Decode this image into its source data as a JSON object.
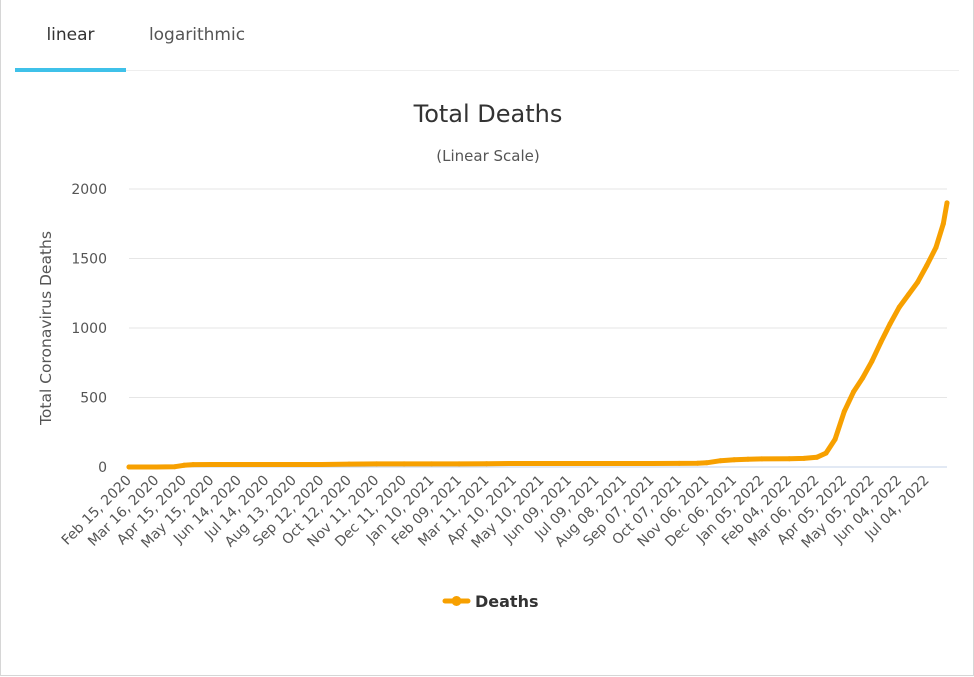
{
  "tabs": [
    {
      "label": "linear",
      "active": true
    },
    {
      "label": "logarithmic",
      "active": false
    }
  ],
  "colors": {
    "series": "#f7a000",
    "tab_underline": "#3fc1e9",
    "grid": "#e6e6e6",
    "x_axis_line": "#c5d3e8"
  },
  "chart_data": {
    "type": "line",
    "title": "Total Deaths",
    "subtitle": "(Linear Scale)",
    "ylabel": "Total Coronavirus Deaths",
    "xlabel": "",
    "ylim": [
      0,
      2000
    ],
    "yticks": [
      0,
      500,
      1000,
      1500,
      2000
    ],
    "x_tick_labels": [
      "Feb 15, 2020",
      "Mar 16, 2020",
      "Apr 15, 2020",
      "May 15, 2020",
      "Jun 14, 2020",
      "Jul 14, 2020",
      "Aug 13, 2020",
      "Sep 12, 2020",
      "Oct 12, 2020",
      "Nov 11, 2020",
      "Dec 11, 2020",
      "Jan 10, 2021",
      "Feb 09, 2021",
      "Mar 11, 2021",
      "Apr 10, 2021",
      "May 10, 2021",
      "Jun 09, 2021",
      "Jul 09, 2021",
      "Aug 08, 2021",
      "Sep 07, 2021",
      "Oct 07, 2021",
      "Nov 06, 2021",
      "Dec 06, 2021",
      "Jan 05, 2022",
      "Feb 04, 2022",
      "Mar 06, 2022",
      "Apr 05, 2022",
      "May 05, 2022",
      "Jun 04, 2022",
      "Jul 04, 2022"
    ],
    "grid": true,
    "legend_position": "bottom-center",
    "series": [
      {
        "name": "Deaths",
        "points": [
          [
            "Feb 15, 2020",
            0
          ],
          [
            "Mar 16, 2020",
            0
          ],
          [
            "Apr 05, 2020",
            2
          ],
          [
            "Apr 15, 2020",
            12
          ],
          [
            "Apr 25, 2020",
            17
          ],
          [
            "May 15, 2020",
            18
          ],
          [
            "Jun 14, 2020",
            18
          ],
          [
            "Jul 14, 2020",
            18
          ],
          [
            "Aug 13, 2020",
            18
          ],
          [
            "Sep 12, 2020",
            18
          ],
          [
            "Oct 12, 2020",
            21
          ],
          [
            "Nov 11, 2020",
            22
          ],
          [
            "Dec 11, 2020",
            22
          ],
          [
            "Jan 10, 2021",
            22
          ],
          [
            "Feb 09, 2021",
            22
          ],
          [
            "Mar 11, 2021",
            24
          ],
          [
            "Apr 10, 2021",
            25
          ],
          [
            "May 10, 2021",
            25
          ],
          [
            "Jun 09, 2021",
            25
          ],
          [
            "Jul 09, 2021",
            25
          ],
          [
            "Aug 08, 2021",
            25
          ],
          [
            "Sep 07, 2021",
            25
          ],
          [
            "Oct 07, 2021",
            26
          ],
          [
            "Oct 27, 2021",
            27
          ],
          [
            "Nov 06, 2021",
            30
          ],
          [
            "Nov 21, 2021",
            45
          ],
          [
            "Dec 06, 2021",
            52
          ],
          [
            "Dec 21, 2021",
            56
          ],
          [
            "Jan 05, 2022",
            58
          ],
          [
            "Feb 04, 2022",
            60
          ],
          [
            "Feb 20, 2022",
            62
          ],
          [
            "Mar 06, 2022",
            70
          ],
          [
            "Mar 16, 2022",
            100
          ],
          [
            "Mar 26, 2022",
            200
          ],
          [
            "Apr 05, 2022",
            400
          ],
          [
            "Apr 15, 2022",
            540
          ],
          [
            "Apr 25, 2022",
            640
          ],
          [
            "May 05, 2022",
            760
          ],
          [
            "May 15, 2022",
            900
          ],
          [
            "May 25, 2022",
            1030
          ],
          [
            "Jun 04, 2022",
            1150
          ],
          [
            "Jun 14, 2022",
            1240
          ],
          [
            "Jun 24, 2022",
            1330
          ],
          [
            "Jul 04, 2022",
            1450
          ],
          [
            "Jul 14, 2022",
            1580
          ],
          [
            "Jul 22, 2022",
            1750
          ],
          [
            "Jul 26, 2022",
            1900
          ]
        ]
      }
    ]
  }
}
